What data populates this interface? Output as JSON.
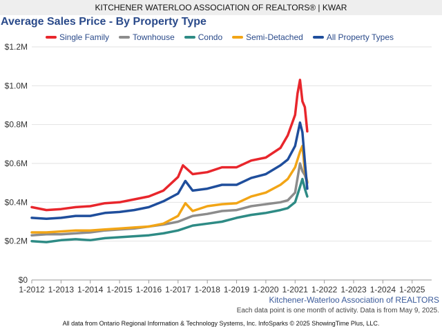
{
  "header": {
    "banner": "KITCHENER WATERLOO ASSOCIATION OF REALTORS® | KWAR"
  },
  "footer": {
    "source_label": "Kitchener-Waterloo Association of REALTORS",
    "note": "Each data point is one month of activity. Data is from May 9, 2025.",
    "credit": "All data from Ontario Regional Information & Technology Systems, Inc. InfoSparks © 2025 ShowingTime Plus, LLC."
  },
  "chart_data": {
    "type": "line",
    "title": "Average Sales Price - By Property Type",
    "xlabel": "",
    "ylabel": "",
    "x_ticks": [
      "1-2012",
      "1-2013",
      "1-2014",
      "1-2015",
      "1-2016",
      "1-2017",
      "1-2018",
      "1-2019",
      "1-2020",
      "1-2021",
      "1-2022",
      "1-2023",
      "1-2024",
      "1-2025"
    ],
    "y_ticks": [
      "$0",
      "$0.2M",
      "$0.4M",
      "$0.6M",
      "$0.8M",
      "$1.0M",
      "$1.2M"
    ],
    "xlim": [
      "2012-01",
      "2025-09"
    ],
    "ylim": [
      0,
      1200000
    ],
    "grid": "horizontal",
    "legend_position": "top",
    "series": [
      {
        "name": "Single Family",
        "color": "#e8262c",
        "points": [
          [
            "2012-01",
            375000
          ],
          [
            "2012-07",
            360000
          ],
          [
            "2013-01",
            365000
          ],
          [
            "2013-07",
            375000
          ],
          [
            "2014-01",
            380000
          ],
          [
            "2014-07",
            395000
          ],
          [
            "2015-01",
            400000
          ],
          [
            "2015-07",
            415000
          ],
          [
            "2016-01",
            430000
          ],
          [
            "2016-07",
            460000
          ],
          [
            "2017-01",
            530000
          ],
          [
            "2017-03",
            590000
          ],
          [
            "2017-07",
            545000
          ],
          [
            "2018-01",
            555000
          ],
          [
            "2018-07",
            580000
          ],
          [
            "2019-01",
            580000
          ],
          [
            "2019-07",
            615000
          ],
          [
            "2020-01",
            630000
          ],
          [
            "2020-07",
            680000
          ],
          [
            "2020-10",
            745000
          ],
          [
            "2021-01",
            850000
          ],
          [
            "2021-02",
            960000
          ],
          [
            "2021-03",
            1030000
          ],
          [
            "2021-04",
            920000
          ],
          [
            "2021-05",
            890000
          ],
          [
            "2021-06",
            765000
          ]
        ]
      },
      {
        "name": "Townhouse",
        "color": "#8c8c8c",
        "points": [
          [
            "2012-01",
            230000
          ],
          [
            "2012-07",
            235000
          ],
          [
            "2013-01",
            235000
          ],
          [
            "2013-07",
            240000
          ],
          [
            "2014-01",
            245000
          ],
          [
            "2014-07",
            255000
          ],
          [
            "2015-01",
            260000
          ],
          [
            "2015-07",
            265000
          ],
          [
            "2016-01",
            275000
          ],
          [
            "2016-07",
            285000
          ],
          [
            "2017-01",
            300000
          ],
          [
            "2017-07",
            330000
          ],
          [
            "2018-01",
            340000
          ],
          [
            "2018-07",
            355000
          ],
          [
            "2019-01",
            360000
          ],
          [
            "2019-07",
            380000
          ],
          [
            "2020-01",
            390000
          ],
          [
            "2020-07",
            400000
          ],
          [
            "2020-10",
            410000
          ],
          [
            "2021-01",
            450000
          ],
          [
            "2021-03",
            600000
          ],
          [
            "2021-04",
            560000
          ],
          [
            "2021-05",
            540000
          ],
          [
            "2021-06",
            500000
          ]
        ]
      },
      {
        "name": "Condo",
        "color": "#2e8b85",
        "points": [
          [
            "2012-01",
            200000
          ],
          [
            "2012-07",
            195000
          ],
          [
            "2013-01",
            205000
          ],
          [
            "2013-07",
            210000
          ],
          [
            "2014-01",
            205000
          ],
          [
            "2014-07",
            215000
          ],
          [
            "2015-01",
            220000
          ],
          [
            "2015-07",
            225000
          ],
          [
            "2016-01",
            230000
          ],
          [
            "2016-07",
            240000
          ],
          [
            "2017-01",
            255000
          ],
          [
            "2017-07",
            280000
          ],
          [
            "2018-01",
            290000
          ],
          [
            "2018-07",
            300000
          ],
          [
            "2019-01",
            320000
          ],
          [
            "2019-07",
            335000
          ],
          [
            "2020-01",
            345000
          ],
          [
            "2020-07",
            360000
          ],
          [
            "2020-10",
            370000
          ],
          [
            "2021-01",
            400000
          ],
          [
            "2021-03",
            480000
          ],
          [
            "2021-04",
            520000
          ],
          [
            "2021-05",
            470000
          ],
          [
            "2021-06",
            430000
          ]
        ]
      },
      {
        "name": "Semi-Detached",
        "color": "#f2a516",
        "points": [
          [
            "2012-01",
            245000
          ],
          [
            "2012-07",
            245000
          ],
          [
            "2013-01",
            250000
          ],
          [
            "2013-07",
            255000
          ],
          [
            "2014-01",
            255000
          ],
          [
            "2014-07",
            260000
          ],
          [
            "2015-01",
            265000
          ],
          [
            "2015-07",
            270000
          ],
          [
            "2016-01",
            275000
          ],
          [
            "2016-07",
            290000
          ],
          [
            "2017-01",
            330000
          ],
          [
            "2017-04",
            395000
          ],
          [
            "2017-07",
            355000
          ],
          [
            "2018-01",
            380000
          ],
          [
            "2018-07",
            390000
          ],
          [
            "2019-01",
            395000
          ],
          [
            "2019-07",
            430000
          ],
          [
            "2020-01",
            450000
          ],
          [
            "2020-07",
            490000
          ],
          [
            "2020-10",
            520000
          ],
          [
            "2021-01",
            580000
          ],
          [
            "2021-03",
            660000
          ],
          [
            "2021-04",
            690000
          ],
          [
            "2021-05",
            560000
          ],
          [
            "2021-06",
            505000
          ]
        ]
      },
      {
        "name": "All Property Types",
        "color": "#1f4e9c",
        "points": [
          [
            "2012-01",
            320000
          ],
          [
            "2012-07",
            315000
          ],
          [
            "2013-01",
            320000
          ],
          [
            "2013-07",
            330000
          ],
          [
            "2014-01",
            330000
          ],
          [
            "2014-07",
            345000
          ],
          [
            "2015-01",
            350000
          ],
          [
            "2015-07",
            360000
          ],
          [
            "2016-01",
            375000
          ],
          [
            "2016-07",
            405000
          ],
          [
            "2017-01",
            445000
          ],
          [
            "2017-04",
            510000
          ],
          [
            "2017-07",
            460000
          ],
          [
            "2018-01",
            470000
          ],
          [
            "2018-07",
            490000
          ],
          [
            "2019-01",
            490000
          ],
          [
            "2019-07",
            525000
          ],
          [
            "2020-01",
            545000
          ],
          [
            "2020-07",
            590000
          ],
          [
            "2020-10",
            620000
          ],
          [
            "2021-01",
            690000
          ],
          [
            "2021-03",
            810000
          ],
          [
            "2021-04",
            760000
          ],
          [
            "2021-05",
            610000
          ],
          [
            "2021-06",
            470000
          ]
        ]
      }
    ]
  }
}
